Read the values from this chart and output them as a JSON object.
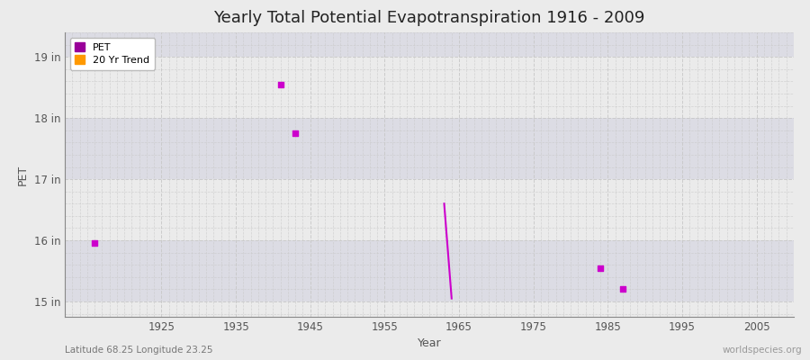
{
  "title": "Yearly Total Potential Evapotranspiration 1916 - 2009",
  "xlabel": "Year",
  "ylabel": "PET",
  "subtitle": "Latitude 68.25 Longitude 23.25",
  "watermark": "worldspecies.org",
  "xlim": [
    1912,
    2010
  ],
  "ylim": [
    14.75,
    19.4
  ],
  "yticks": [
    15,
    16,
    17,
    18,
    19
  ],
  "ytick_labels": [
    "15 in",
    "16 in",
    "17 in",
    "18 in",
    "19 in"
  ],
  "xticks": [
    1925,
    1935,
    1945,
    1955,
    1965,
    1975,
    1985,
    1995,
    2005
  ],
  "pet_x": [
    1916,
    1941,
    1943,
    1984,
    1987
  ],
  "pet_y": [
    15.95,
    18.55,
    17.75,
    15.55,
    15.2
  ],
  "trend_x": [
    1963,
    1964
  ],
  "trend_y": [
    16.6,
    15.05
  ],
  "pet_color": "#cc00cc",
  "trend_color": "#cc00cc",
  "bg_color": "#ebebeb",
  "plot_bg_light": "#ebebeb",
  "plot_bg_dark": "#dcdce4",
  "grid_color": "#c8c8c8",
  "legend_pet_color": "#990099",
  "legend_trend_color": "#ff9900",
  "title_fontsize": 13,
  "axis_label_fontsize": 9,
  "tick_fontsize": 8.5
}
